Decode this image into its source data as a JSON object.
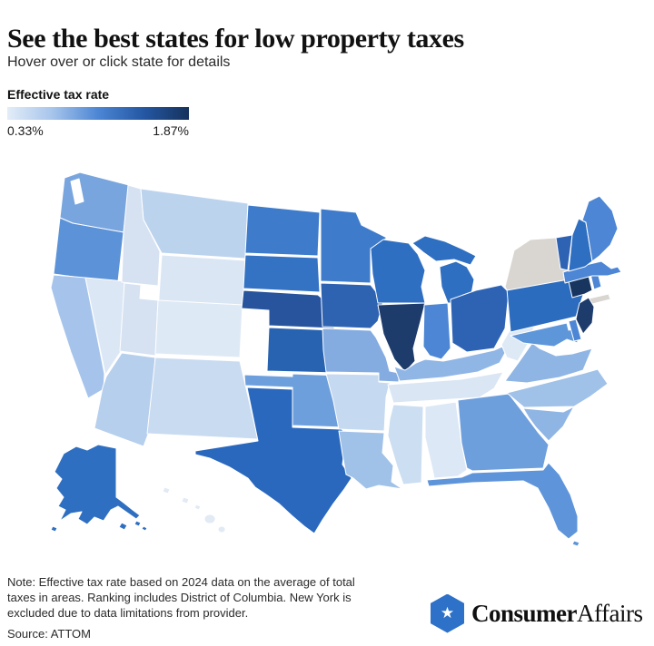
{
  "header": {
    "title": "See the best states for low property taxes",
    "subtitle": "Hover over or click state for details"
  },
  "legend": {
    "label": "Effective tax rate",
    "min_label": "0.33%",
    "max_label": "1.87%",
    "gradient_stops": [
      "#E3EDF8",
      "#A6C4EB",
      "#4C86D4",
      "#2457A4",
      "#16325C"
    ]
  },
  "chart_data": {
    "type": "choropleth",
    "title": "Effective property tax rate by U.S. state",
    "unit": "percent",
    "range": {
      "min": 0.33,
      "max": 1.87
    },
    "legend_position": "top-left",
    "excluded_region": {
      "name": "New York",
      "reason": "excluded due to data limitations from provider",
      "color": "#D9D6D1"
    },
    "states": [
      {
        "id": "WA",
        "name": "Washington",
        "color": "#79A5DE"
      },
      {
        "id": "OR",
        "name": "Oregon",
        "color": "#5C92D7"
      },
      {
        "id": "CA",
        "name": "California",
        "color": "#A6C4EB"
      },
      {
        "id": "NV",
        "name": "Nevada",
        "color": "#DCE7F5"
      },
      {
        "id": "ID",
        "name": "Idaho",
        "color": "#D6E2F2"
      },
      {
        "id": "MT",
        "name": "Montana",
        "color": "#BCD3EE"
      },
      {
        "id": "WY",
        "name": "Wyoming",
        "color": "#DBE6F5"
      },
      {
        "id": "UT",
        "name": "Utah",
        "color": "#D6E2F2"
      },
      {
        "id": "CO",
        "name": "Colorado",
        "color": "#DEE9F6"
      },
      {
        "id": "AZ",
        "name": "Arizona",
        "color": "#B6CFED"
      },
      {
        "id": "NM",
        "name": "New Mexico",
        "color": "#C9DBF1"
      },
      {
        "id": "ND",
        "name": "North Dakota",
        "color": "#3E7CCB"
      },
      {
        "id": "SD",
        "name": "South Dakota",
        "color": "#3472C4"
      },
      {
        "id": "NE",
        "name": "Nebraska",
        "color": "#27549C"
      },
      {
        "id": "KS",
        "name": "Kansas",
        "color": "#2763B1"
      },
      {
        "id": "OK",
        "name": "Oklahoma",
        "color": "#6E9FDD"
      },
      {
        "id": "TX",
        "name": "Texas",
        "color": "#2A68BE"
      },
      {
        "id": "MN",
        "name": "Minnesota",
        "color": "#3E7CCB"
      },
      {
        "id": "IA",
        "name": "Iowa",
        "color": "#2E63B2"
      },
      {
        "id": "MO",
        "name": "Missouri",
        "color": "#84ACE1"
      },
      {
        "id": "AR",
        "name": "Arkansas",
        "color": "#C5D9F0"
      },
      {
        "id": "LA",
        "name": "Louisiana",
        "color": "#A0C1E8"
      },
      {
        "id": "WI",
        "name": "Wisconsin",
        "color": "#2F6FC1"
      },
      {
        "id": "IL",
        "name": "Illinois",
        "color": "#1E3C6B"
      },
      {
        "id": "MI",
        "name": "Michigan",
        "color": "#2F6FC1"
      },
      {
        "id": "IN",
        "name": "Indiana",
        "color": "#4C86D4"
      },
      {
        "id": "OH",
        "name": "Ohio",
        "color": "#2E63B4"
      },
      {
        "id": "KY",
        "name": "Kentucky",
        "color": "#90B6E5"
      },
      {
        "id": "TN",
        "name": "Tennessee",
        "color": "#DAE6F4"
      },
      {
        "id": "MS",
        "name": "Mississippi",
        "color": "#CCDEF2"
      },
      {
        "id": "AL",
        "name": "Alabama",
        "color": "#DDE8F6"
      },
      {
        "id": "GA",
        "name": "Georgia",
        "color": "#6E9FDD"
      },
      {
        "id": "FL",
        "name": "Florida",
        "color": "#5E94D9"
      },
      {
        "id": "SC",
        "name": "South Carolina",
        "color": "#8FB5E4"
      },
      {
        "id": "NC",
        "name": "North Carolina",
        "color": "#A0C1E8"
      },
      {
        "id": "VA",
        "name": "Virginia",
        "color": "#8FB5E4"
      },
      {
        "id": "WV",
        "name": "West Virginia",
        "color": "#DEE9F6"
      },
      {
        "id": "PA",
        "name": "Pennsylvania",
        "color": "#2C6CBE"
      },
      {
        "id": "NY",
        "name": "New York",
        "color": "#D9D6D1"
      },
      {
        "id": "NJ",
        "name": "New Jersey",
        "color": "#1E3C6B"
      },
      {
        "id": "MD",
        "name": "Maryland",
        "color": "#5E96DA"
      },
      {
        "id": "DE",
        "name": "Delaware",
        "color": "#4C86D4"
      },
      {
        "id": "CT",
        "name": "Connecticut",
        "color": "#17355F"
      },
      {
        "id": "RI",
        "name": "Rhode Island",
        "color": "#4C86D4"
      },
      {
        "id": "MA",
        "name": "Massachusetts",
        "color": "#4C86D4"
      },
      {
        "id": "VT",
        "name": "Vermont",
        "color": "#2E63B4"
      },
      {
        "id": "NH",
        "name": "New Hampshire",
        "color": "#2F6FC1"
      },
      {
        "id": "ME",
        "name": "Maine",
        "color": "#4C86D4"
      },
      {
        "id": "AK",
        "name": "Alaska",
        "color": "#2F6FC1"
      },
      {
        "id": "HI",
        "name": "Hawaii",
        "color": "#E2EAF4"
      }
    ]
  },
  "footer": {
    "note_lines": [
      "Note: Effective tax rate based on 2024 data on the average of total",
      "taxes in areas. Ranking includes District of Columbia. New York is",
      "excluded due to data limitations from provider."
    ],
    "source": "Source: ATTOM",
    "brand": {
      "name_bold": "Consumer",
      "name_light": "Affairs",
      "icon": "hexagon-star-icon",
      "icon_color": "#2E71C8"
    }
  }
}
